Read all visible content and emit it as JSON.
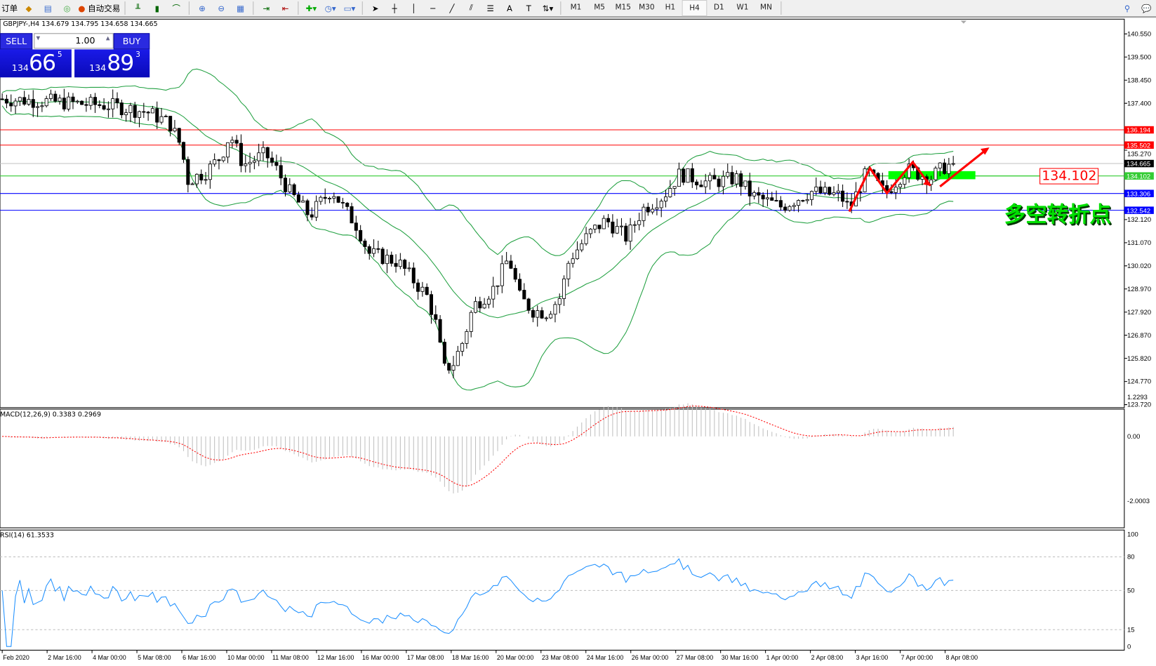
{
  "toolbar": {
    "order_label": "订单",
    "autotrade_label": "自动交易",
    "timeframes": [
      "M1",
      "M5",
      "M15",
      "M30",
      "H1",
      "H4",
      "D1",
      "W1",
      "MN"
    ],
    "active_timeframe": "H4"
  },
  "chart": {
    "symbol_line": "GBPJPY-,H4  134.679 134.795 134.658 134.665",
    "trade_panel": {
      "sell_label": "SELL",
      "buy_label": "BUY",
      "volume": "1.00",
      "sell_small": "134",
      "sell_big": "66",
      "sell_sup": "5",
      "buy_small": "134",
      "buy_big": "89",
      "buy_sup": "3"
    },
    "price_axis": [
      "140.550",
      "139.500",
      "138.450",
      "137.400",
      "135.270",
      "132.120",
      "131.070",
      "130.020",
      "128.970",
      "127.920",
      "126.870",
      "125.820",
      "124.770",
      "123.720"
    ],
    "hlines": [
      {
        "price": 136.194,
        "label": "136.194",
        "color": "#ff0000"
      },
      {
        "price": 135.502,
        "label": "135.502",
        "color": "#ff0000"
      },
      {
        "price": 134.665,
        "label": "134.665",
        "color": "#000000",
        "line": "#c0c0c0"
      },
      {
        "price": 134.102,
        "label": "134.102",
        "color": "#33cc33"
      },
      {
        "price": 133.306,
        "label": "133.306",
        "color": "#0000ff"
      },
      {
        "price": 132.542,
        "label": "132.542",
        "color": "#0000ff"
      }
    ],
    "annotation_price": "134.102",
    "annotation_text": "多空转折点",
    "close_path": [
      [
        0,
        137.6
      ],
      [
        60,
        137.5
      ],
      [
        100,
        137.4
      ],
      [
        150,
        137.3
      ],
      [
        200,
        137.0
      ],
      [
        230,
        136.5
      ],
      [
        245,
        135.5
      ],
      [
        255,
        133.9
      ],
      [
        280,
        134.3
      ],
      [
        300,
        135.0
      ],
      [
        312,
        136.0
      ],
      [
        330,
        134.6
      ],
      [
        360,
        135.1
      ],
      [
        375,
        134.4
      ],
      [
        392,
        133.4
      ],
      [
        420,
        132.3
      ],
      [
        450,
        133.5
      ],
      [
        465,
        132.7
      ],
      [
        485,
        131.8
      ],
      [
        500,
        130.6
      ],
      [
        540,
        130.2
      ],
      [
        560,
        129.4
      ],
      [
        580,
        128.6
      ],
      [
        592,
        127.3
      ],
      [
        602,
        125.3
      ],
      [
        615,
        125.6
      ],
      [
        628,
        126.6
      ],
      [
        642,
        128.2
      ],
      [
        670,
        129.0
      ],
      [
        690,
        130.4
      ],
      [
        705,
        128.6
      ],
      [
        722,
        128.0
      ],
      [
        742,
        127.9
      ],
      [
        760,
        128.6
      ],
      [
        772,
        130.3
      ],
      [
        800,
        131.5
      ],
      [
        822,
        132.1
      ],
      [
        850,
        131.3
      ],
      [
        872,
        132.6
      ],
      [
        900,
        133.2
      ],
      [
        922,
        134.2
      ],
      [
        960,
        133.8
      ],
      [
        1000,
        134.0
      ],
      [
        1020,
        133.2
      ],
      [
        1060,
        132.7
      ],
      [
        1100,
        133.4
      ],
      [
        1140,
        133.2
      ],
      [
        1152,
        132.6
      ],
      [
        1176,
        134.3
      ],
      [
        1200,
        133.3
      ],
      [
        1230,
        134.4
      ],
      [
        1262,
        134.0
      ],
      [
        1280,
        134.5
      ],
      [
        1295,
        134.665
      ]
    ],
    "ylim": [
      123.72,
      140.55
    ]
  },
  "macd": {
    "label": "MACD(12,26,9) 0.3383 0.2969",
    "axis": [
      "1.2293",
      "0.00",
      "-2.0003"
    ],
    "ylim": [
      -2.0003,
      1.2293
    ]
  },
  "rsi": {
    "label": "RSI(14) 61.3533",
    "axis": [
      "100",
      "80",
      "50",
      "15",
      "0"
    ],
    "levels": [
      80,
      50,
      15
    ]
  },
  "time_axis": [
    "Feb 2020",
    "2 Mar 16:00",
    "4 Mar 00:00",
    "5 Mar 08:00",
    "6 Mar 16:00",
    "10 Mar 00:00",
    "11 Mar 08:00",
    "12 Mar 16:00",
    "16 Mar 00:00",
    "17 Mar 08:00",
    "18 Mar 16:00",
    "20 Mar 00:00",
    "23 Mar 08:00",
    "24 Mar 16:00",
    "26 Mar 00:00",
    "27 Mar 08:00",
    "30 Mar 16:00",
    "1 Apr 00:00",
    "2 Apr 08:00",
    "3 Apr 16:00",
    "7 Apr 00:00",
    "8 Apr 08:00"
  ],
  "colors": {
    "bull": "#ffffff",
    "bear": "#000000",
    "bands": "#20a040",
    "macd_signal": "#ff0000",
    "macd_hist": "#c0c0c0",
    "rsi": "#1e90ff",
    "zone": "#00ff00",
    "arrow": "#ff0000"
  }
}
